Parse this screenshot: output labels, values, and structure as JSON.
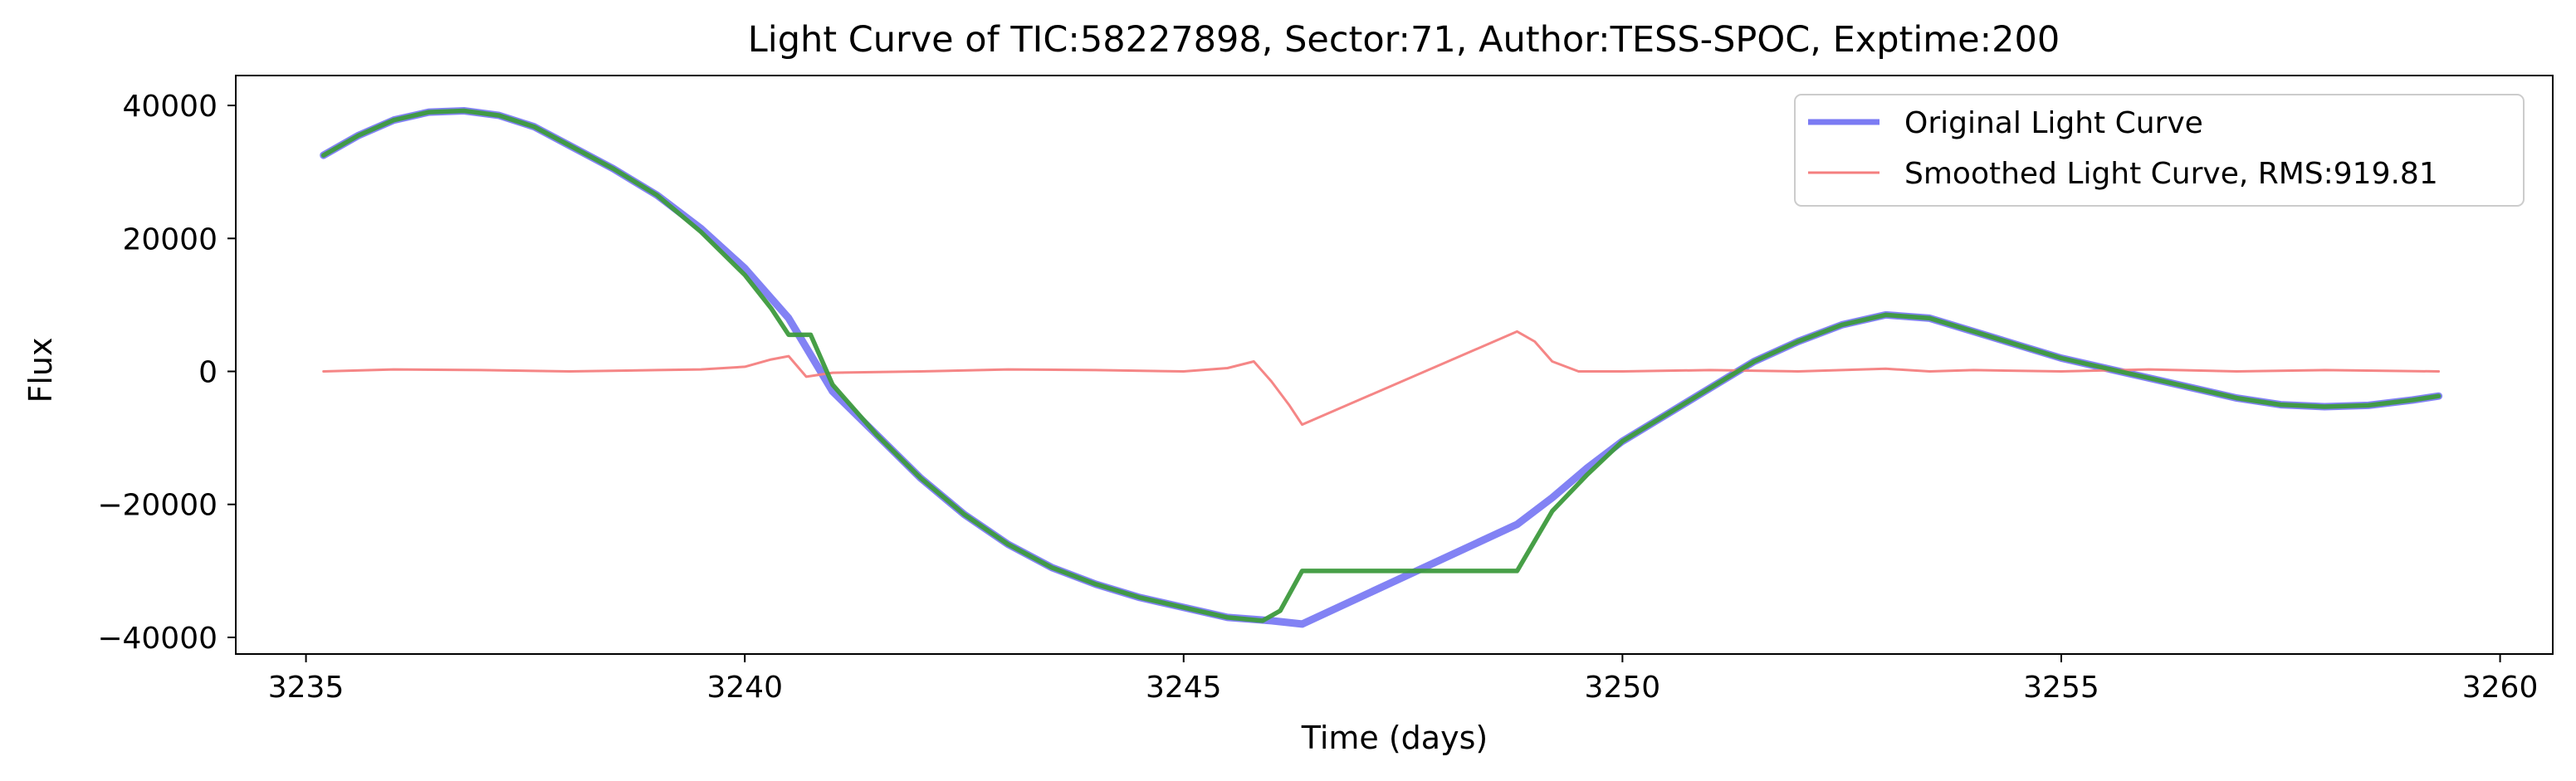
{
  "chart_data": {
    "type": "line",
    "title": "Light Curve of TIC:58227898, Sector:71, Author:TESS-SPOC, Exptime:200",
    "xlabel": "Time (days)",
    "ylabel": "Flux",
    "xlim": [
      3234.2,
      3260.6
    ],
    "ylim": [
      -42500,
      44500
    ],
    "xticks": [
      3235,
      3240,
      3245,
      3250,
      3255,
      3260
    ],
    "yticks": [
      -40000,
      -20000,
      0,
      20000,
      40000
    ],
    "xtick_labels": [
      "3235",
      "3240",
      "3245",
      "3250",
      "3255",
      "3260"
    ],
    "ytick_labels": [
      "−40000",
      "−20000",
      "0",
      "20000",
      "40000"
    ],
    "legend": {
      "position": "top-right",
      "entries": [
        "Original Light Curve",
        "Smoothed Light Curve, RMS:919.81"
      ]
    },
    "series": [
      {
        "name": "Original Light Curve",
        "color": "#7b7bf3",
        "x": [
          3235.2,
          3235.6,
          3236.0,
          3236.4,
          3236.8,
          3237.2,
          3237.6,
          3238.0,
          3238.5,
          3239.0,
          3239.5,
          3240.0,
          3240.5,
          3241.0,
          3241.5,
          3242.0,
          3242.5,
          3243.0,
          3243.5,
          3244.0,
          3244.5,
          3245.0,
          3245.5,
          3246.0,
          3246.35,
          3248.8,
          3249.2,
          3249.6,
          3250.0,
          3250.5,
          3251.0,
          3251.5,
          3252.0,
          3252.5,
          3253.0,
          3253.5,
          3254.0,
          3254.5,
          3255.0,
          3255.5,
          3256.0,
          3256.5,
          3257.0,
          3257.5,
          3258.0,
          3258.5,
          3259.0,
          3259.3
        ],
        "y": [
          32500,
          35500,
          37800,
          39000,
          39200,
          38500,
          36800,
          34000,
          30500,
          26500,
          21500,
          15500,
          8000,
          -3000,
          -9500,
          -16000,
          -21500,
          -26000,
          -29500,
          -32000,
          -34000,
          -35500,
          -37000,
          -37500,
          -38000,
          -23000,
          -19000,
          -14500,
          -10500,
          -6500,
          -2500,
          1500,
          4500,
          7000,
          8500,
          8000,
          6000,
          4000,
          2000,
          500,
          -1000,
          -2500,
          -4000,
          -5000,
          -5300,
          -5100,
          -4300,
          -3700
        ]
      },
      {
        "name": "Smoothed Light Curve, RMS:919.81",
        "color": "#f47f7f",
        "x": [
          3235.2,
          3236.0,
          3237.0,
          3238.0,
          3239.0,
          3239.5,
          3240.0,
          3240.3,
          3240.5,
          3240.7,
          3241.0,
          3242.0,
          3243.0,
          3244.0,
          3245.0,
          3245.5,
          3245.8,
          3246.0,
          3246.2,
          3246.35,
          3248.8,
          3249.0,
          3249.2,
          3249.5,
          3250.0,
          3251.0,
          3252.0,
          3253.0,
          3253.5,
          3254.0,
          3255.0,
          3256.0,
          3257.0,
          3258.0,
          3259.3
        ],
        "y": [
          0,
          300,
          200,
          0,
          200,
          300,
          700,
          1800,
          2300,
          -800,
          -200,
          0,
          300,
          200,
          0,
          500,
          1500,
          -1500,
          -5000,
          -8000,
          6000,
          4500,
          1500,
          0,
          0,
          200,
          0,
          400,
          0,
          200,
          0,
          300,
          0,
          200,
          0
        ]
      },
      {
        "name": "",
        "color": "#3d9a3d",
        "x": [
          3235.2,
          3235.6,
          3236.0,
          3236.4,
          3236.8,
          3237.2,
          3237.6,
          3238.0,
          3238.5,
          3239.0,
          3239.5,
          3240.0,
          3240.3,
          3240.5,
          3240.75,
          3241.0,
          3241.5,
          3242.0,
          3242.5,
          3243.0,
          3243.5,
          3244.0,
          3244.5,
          3245.0,
          3245.5,
          3245.9,
          3246.1,
          3246.35,
          3248.8,
          3249.2,
          3249.6,
          3250.0,
          3250.5,
          3251.0,
          3251.5,
          3252.0,
          3252.5,
          3253.0,
          3253.5,
          3254.0,
          3254.5,
          3255.0,
          3255.5,
          3256.0,
          3256.5,
          3257.0,
          3257.5,
          3258.0,
          3258.5,
          3259.0,
          3259.3
        ],
        "y": [
          32500,
          35500,
          37800,
          39000,
          39200,
          38500,
          36800,
          34000,
          30500,
          26500,
          21000,
          14500,
          9500,
          5500,
          5500,
          -2000,
          -9500,
          -16000,
          -21500,
          -26000,
          -29500,
          -32000,
          -34000,
          -35500,
          -37000,
          -37500,
          -36000,
          -30000,
          -30000,
          -21000,
          -15500,
          -10500,
          -6500,
          -2500,
          1500,
          4500,
          7000,
          8500,
          8000,
          6000,
          4000,
          2000,
          500,
          -1000,
          -2500,
          -4000,
          -5000,
          -5300,
          -5100,
          -4300,
          -3700
        ]
      }
    ]
  }
}
